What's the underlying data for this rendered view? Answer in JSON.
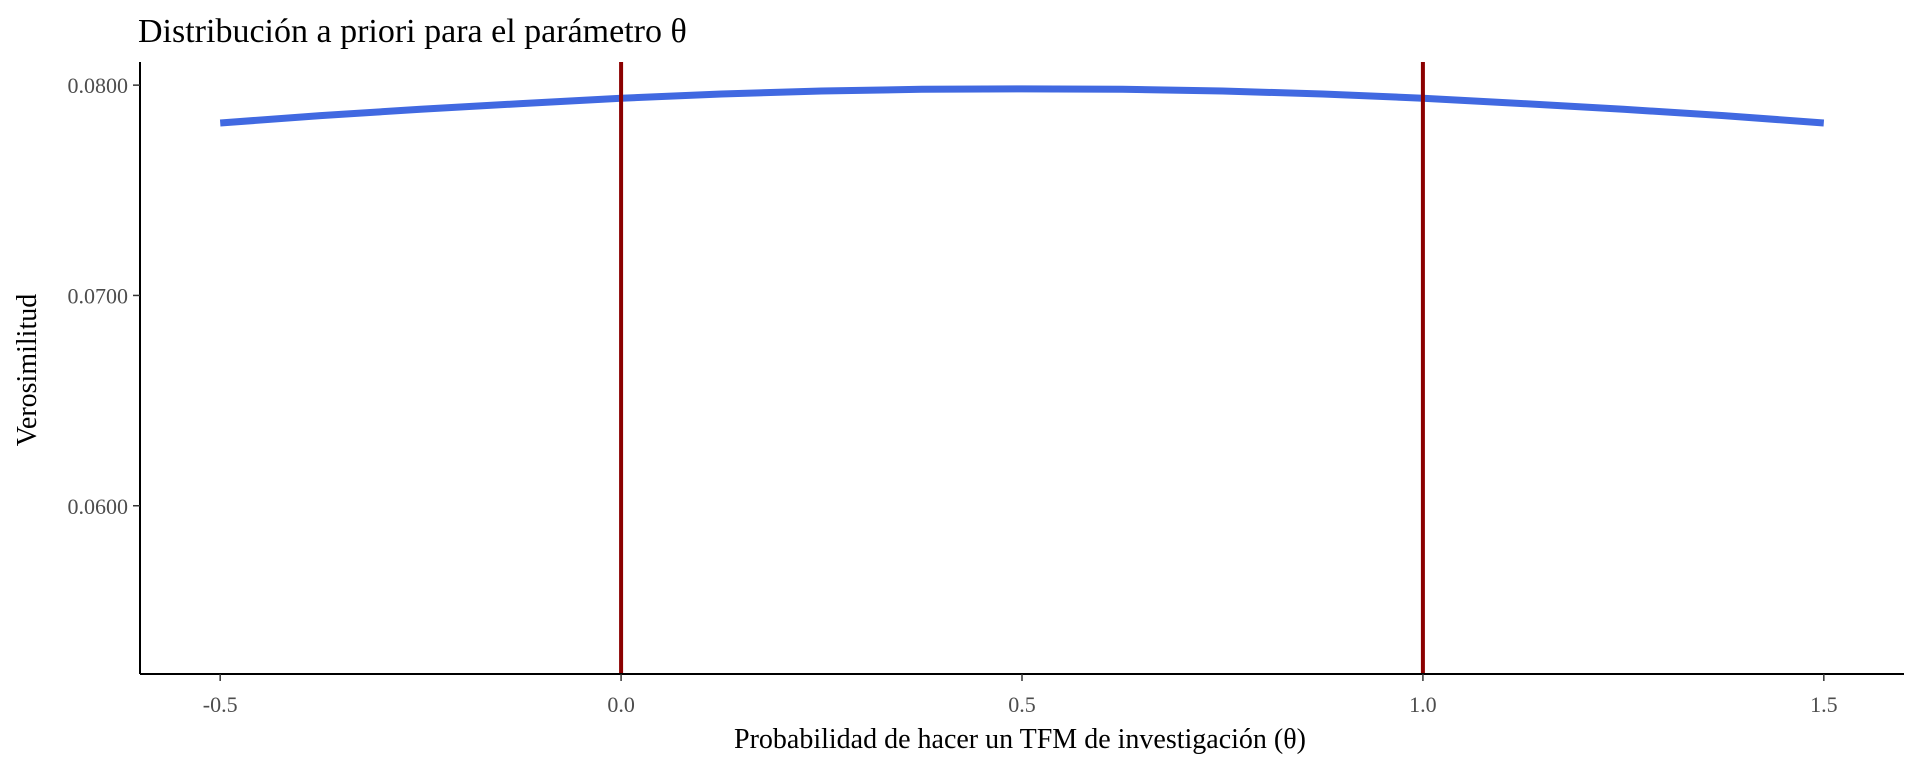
{
  "chart_data": {
    "type": "line",
    "title": "Distribución a priori para el parámetro θ",
    "xlabel": "Probabilidad de hacer un TFM de investigación (θ)",
    "ylabel": "Verosimilitud",
    "xlim": [
      -0.6,
      1.6
    ],
    "ylim": [
      0.052,
      0.0811
    ],
    "x_ticks": [
      -0.5,
      0.0,
      0.5,
      1.0,
      1.5
    ],
    "x_tick_labels": [
      "-0.5",
      "0.0",
      "0.5",
      "1.0",
      "1.5"
    ],
    "y_ticks": [
      0.06,
      0.07,
      0.08
    ],
    "y_tick_labels": [
      "0.0600",
      "0.0700",
      "0.0800"
    ],
    "grid": false,
    "series": [
      {
        "color": "#4169E1",
        "x": [
          -0.5,
          -0.375,
          -0.25,
          -0.125,
          0.0,
          0.125,
          0.25,
          0.375,
          0.5,
          0.625,
          0.75,
          0.875,
          1.0,
          1.125,
          1.25,
          1.375,
          1.5
        ],
        "y": [
          0.0782,
          0.07855,
          0.07885,
          0.07912,
          0.07938,
          0.07958,
          0.07972,
          0.0798,
          0.07982,
          0.0798,
          0.07972,
          0.07958,
          0.07938,
          0.07912,
          0.07885,
          0.07855,
          0.0782
        ]
      }
    ],
    "vlines": [
      {
        "x": 0.0,
        "color": "#8B0000"
      },
      {
        "x": 1.0,
        "color": "#8B0000"
      }
    ]
  }
}
